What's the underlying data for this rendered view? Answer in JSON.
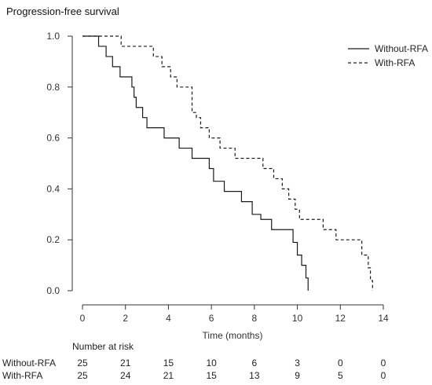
{
  "chart_data": {
    "type": "line",
    "title": "Progression-free survival",
    "xlabel": "Time (months)",
    "ylabel": "",
    "xlim": [
      0,
      14
    ],
    "ylim": [
      0,
      1
    ],
    "xticks": [
      0,
      2,
      4,
      6,
      8,
      10,
      12,
      14
    ],
    "xtick_labels": [
      "0",
      "2",
      "4",
      "6",
      "8",
      "10",
      "12",
      "14"
    ],
    "yticks": [
      0,
      0.2,
      0.4,
      0.6,
      0.8,
      1.0
    ],
    "ytick_labels": [
      "0.0",
      "0.2",
      "0.4",
      "0.6",
      "0.8",
      "1.0"
    ],
    "legend_position": "top-right",
    "grid": false,
    "series": [
      {
        "name": "Without-RFA",
        "style": "solid",
        "color": "#1a1a1a",
        "steps": [
          [
            0,
            1.0
          ],
          [
            0.75,
            0.96
          ],
          [
            1.1,
            0.92
          ],
          [
            1.4,
            0.88
          ],
          [
            1.75,
            0.84
          ],
          [
            2.3,
            0.8
          ],
          [
            2.4,
            0.76
          ],
          [
            2.5,
            0.72
          ],
          [
            2.8,
            0.68
          ],
          [
            3.0,
            0.64
          ],
          [
            3.8,
            0.6
          ],
          [
            4.5,
            0.56
          ],
          [
            5.1,
            0.52
          ],
          [
            5.9,
            0.48
          ],
          [
            6.1,
            0.43
          ],
          [
            6.6,
            0.39
          ],
          [
            7.4,
            0.35
          ],
          [
            7.9,
            0.3
          ],
          [
            8.3,
            0.28
          ],
          [
            8.8,
            0.24
          ],
          [
            9.8,
            0.19
          ],
          [
            10.0,
            0.14
          ],
          [
            10.2,
            0.1
          ],
          [
            10.4,
            0.05
          ],
          [
            10.5,
            0.0
          ]
        ],
        "end_x": 10.5
      },
      {
        "name": "With-RFA",
        "style": "dashed",
        "color": "#1a1a1a",
        "steps": [
          [
            0,
            1.0
          ],
          [
            1.8,
            0.96
          ],
          [
            3.3,
            0.92
          ],
          [
            3.7,
            0.88
          ],
          [
            4.1,
            0.84
          ],
          [
            4.4,
            0.8
          ],
          [
            5.1,
            0.76
          ],
          [
            5.1,
            0.7
          ],
          [
            5.3,
            0.68
          ],
          [
            5.5,
            0.64
          ],
          [
            5.9,
            0.6
          ],
          [
            6.4,
            0.56
          ],
          [
            7.1,
            0.52
          ],
          [
            8.4,
            0.48
          ],
          [
            8.9,
            0.44
          ],
          [
            9.3,
            0.4
          ],
          [
            9.6,
            0.36
          ],
          [
            9.9,
            0.32
          ],
          [
            10.1,
            0.28
          ],
          [
            11.2,
            0.24
          ],
          [
            11.8,
            0.2
          ],
          [
            13.0,
            0.14
          ],
          [
            13.3,
            0.09
          ],
          [
            13.4,
            0.04
          ],
          [
            13.5,
            0.0
          ]
        ],
        "end_x": 13.5
      }
    ],
    "risk_table": {
      "title": "Number at risk",
      "times": [
        0,
        2,
        4,
        6,
        8,
        10,
        12,
        14
      ],
      "rows": [
        {
          "label": "Without-RFA",
          "values": [
            "25",
            "21",
            "15",
            "10",
            "6",
            "3",
            "0",
            "0"
          ]
        },
        {
          "label": "With-RFA",
          "values": [
            "25",
            "24",
            "21",
            "15",
            "13",
            "9",
            "5",
            "0"
          ]
        }
      ]
    }
  }
}
